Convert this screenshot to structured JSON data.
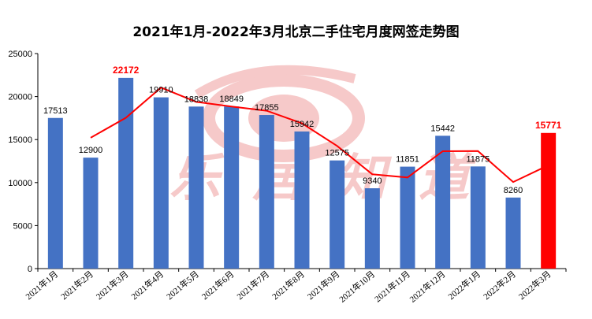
{
  "colors": {
    "bar": "#4472c4",
    "highlight_bar": "#ff0000",
    "trend_line": "#ff0000",
    "watermark": "#f6c9c9"
  },
  "watermark_text": "乐居知道",
  "chart_data": {
    "type": "bar",
    "title": "2021年1月-2022年3月北京二手住宅月度网签走势图",
    "xlabel": "",
    "ylabel": "",
    "ylim": [
      0,
      25000
    ],
    "yticks": [
      0,
      5000,
      10000,
      15000,
      20000,
      25000
    ],
    "grid": false,
    "categories": [
      "2021年1月",
      "2021年2月",
      "2021年3月",
      "2021年4月",
      "2021年5月",
      "2021年6月",
      "2021年7月",
      "2021年8月",
      "2021年9月",
      "2021年10月",
      "2021年11月",
      "2021年12月",
      "2022年1月",
      "2022年2月",
      "2022年3月"
    ],
    "series": [
      {
        "values": [
          17513,
          12900,
          22172,
          19910,
          18838,
          18849,
          17855,
          15942,
          12575,
          9340,
          11851,
          15442,
          11875,
          8260,
          15771
        ],
        "highlight_indices": [
          2,
          14
        ]
      }
    ],
    "trendline": {
      "type": "line",
      "x_range": [
        "2021年2月",
        "2022年3月"
      ],
      "values": [
        15207,
        17536,
        21041,
        19374,
        18844,
        18352,
        16899,
        14259,
        10958,
        10596,
        13647,
        13659,
        10068,
        12016
      ]
    }
  }
}
